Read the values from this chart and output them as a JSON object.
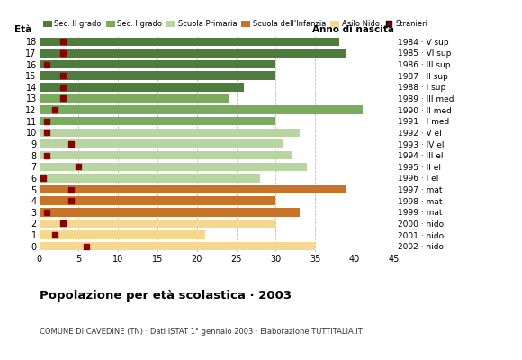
{
  "ages": [
    18,
    17,
    16,
    15,
    14,
    13,
    12,
    11,
    10,
    9,
    8,
    7,
    6,
    5,
    4,
    3,
    2,
    1,
    0
  ],
  "bar_values": [
    38,
    39,
    30,
    30,
    26,
    24,
    41,
    30,
    33,
    31,
    32,
    34,
    28,
    39,
    30,
    33,
    30,
    21,
    35
  ],
  "stranieri_x": [
    3,
    3,
    1,
    3,
    3,
    3,
    2,
    1,
    1,
    4,
    1,
    5,
    0.5,
    4,
    4,
    1,
    3,
    2,
    6
  ],
  "bar_colors": [
    "#4d7c3b",
    "#4d7c3b",
    "#4d7c3b",
    "#4d7c3b",
    "#4d7c3b",
    "#7aab5e",
    "#7aab5e",
    "#7aab5e",
    "#b8d4a0",
    "#b8d4a0",
    "#b8d4a0",
    "#b8d4a0",
    "#b8d4a0",
    "#c8732a",
    "#c8732a",
    "#c8732a",
    "#f5d78e",
    "#f5d78e",
    "#f5d78e"
  ],
  "right_labels": [
    "1984 · V sup",
    "1985 · VI sup",
    "1986 · III sup",
    "1987 · II sup",
    "1988 · I sup",
    "1989 · III med",
    "1990 · II med",
    "1991 · I med",
    "1992 · V el",
    "1993 · IV el",
    "1994 · III el",
    "1995 · II el",
    "1996 · I el",
    "1997 · mat",
    "1998 · mat",
    "1999 · mat",
    "2000 · nido",
    "2001 · nido",
    "2002 · nido"
  ],
  "xlim": [
    0,
    45
  ],
  "xticks": [
    0,
    5,
    10,
    15,
    20,
    25,
    30,
    35,
    40,
    45
  ],
  "legend_labels": [
    "Sec. II grado",
    "Sec. I grado",
    "Scuola Primaria",
    "Scuola dell'Infanzia",
    "Asilo Nido",
    "Stranieri"
  ],
  "legend_colors": [
    "#4d7c3b",
    "#7aab5e",
    "#b8d4a0",
    "#c8732a",
    "#f5d78e",
    "#8b0000"
  ],
  "title": "Popolazione per età scolastica · 2003",
  "subtitle": "COMUNE DI CAVEDINE (TN) · Dati ISTAT 1° gennaio 2003 · Elaborazione TUTTITALIA.IT",
  "ylabel": "Età",
  "right_ylabel": "Anno di nascita",
  "grid_color": "#bbbbbb",
  "bar_height": 0.75,
  "stranieri_color": "#8b0000",
  "stranieri_size": 5,
  "bg_color": "#ffffff"
}
